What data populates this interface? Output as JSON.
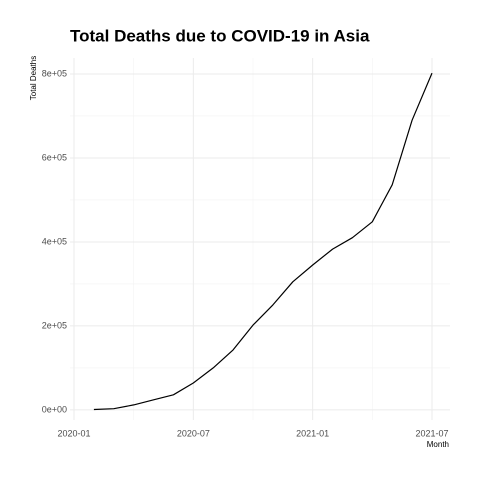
{
  "chart_data": {
    "type": "line",
    "title": "Total Deaths due to COVID-19 in Asia",
    "x_label": "Month",
    "y_label": "Total Deaths",
    "x": [
      "2020-02",
      "2020-03",
      "2020-04",
      "2020-05",
      "2020-06",
      "2020-07",
      "2020-08",
      "2020-09",
      "2020-10",
      "2020-11",
      "2020-12",
      "2021-01",
      "2021-02",
      "2021-03",
      "2021-04",
      "2021-05",
      "2021-06",
      "2021-07"
    ],
    "series": [
      {
        "name": "Total Deaths",
        "color": "#000000",
        "values": [
          1000,
          3000,
          12000,
          24000,
          36000,
          64000,
          100000,
          143000,
          202000,
          250000,
          305000,
          345000,
          383000,
          410000,
          448000,
          536000,
          690000,
          802000
        ]
      }
    ],
    "xlim": [
      "2020-01",
      "2021-07"
    ],
    "xticks": [
      "2020-01",
      "2020-07",
      "2021-01",
      "2021-07"
    ],
    "xminor_ticks": [
      "2020-04",
      "2020-10",
      "2021-04"
    ],
    "ylim": [
      -24000,
      838000
    ],
    "yticks": [
      {
        "value": 0,
        "label": "0e+00"
      },
      {
        "value": 200000,
        "label": "2e+05"
      },
      {
        "value": 400000,
        "label": "4e+05"
      },
      {
        "value": 600000,
        "label": "6e+05"
      },
      {
        "value": 800000,
        "label": "8e+05"
      }
    ],
    "yminor_ticks": [
      100000,
      300000,
      500000,
      700000
    ],
    "grid": true
  }
}
